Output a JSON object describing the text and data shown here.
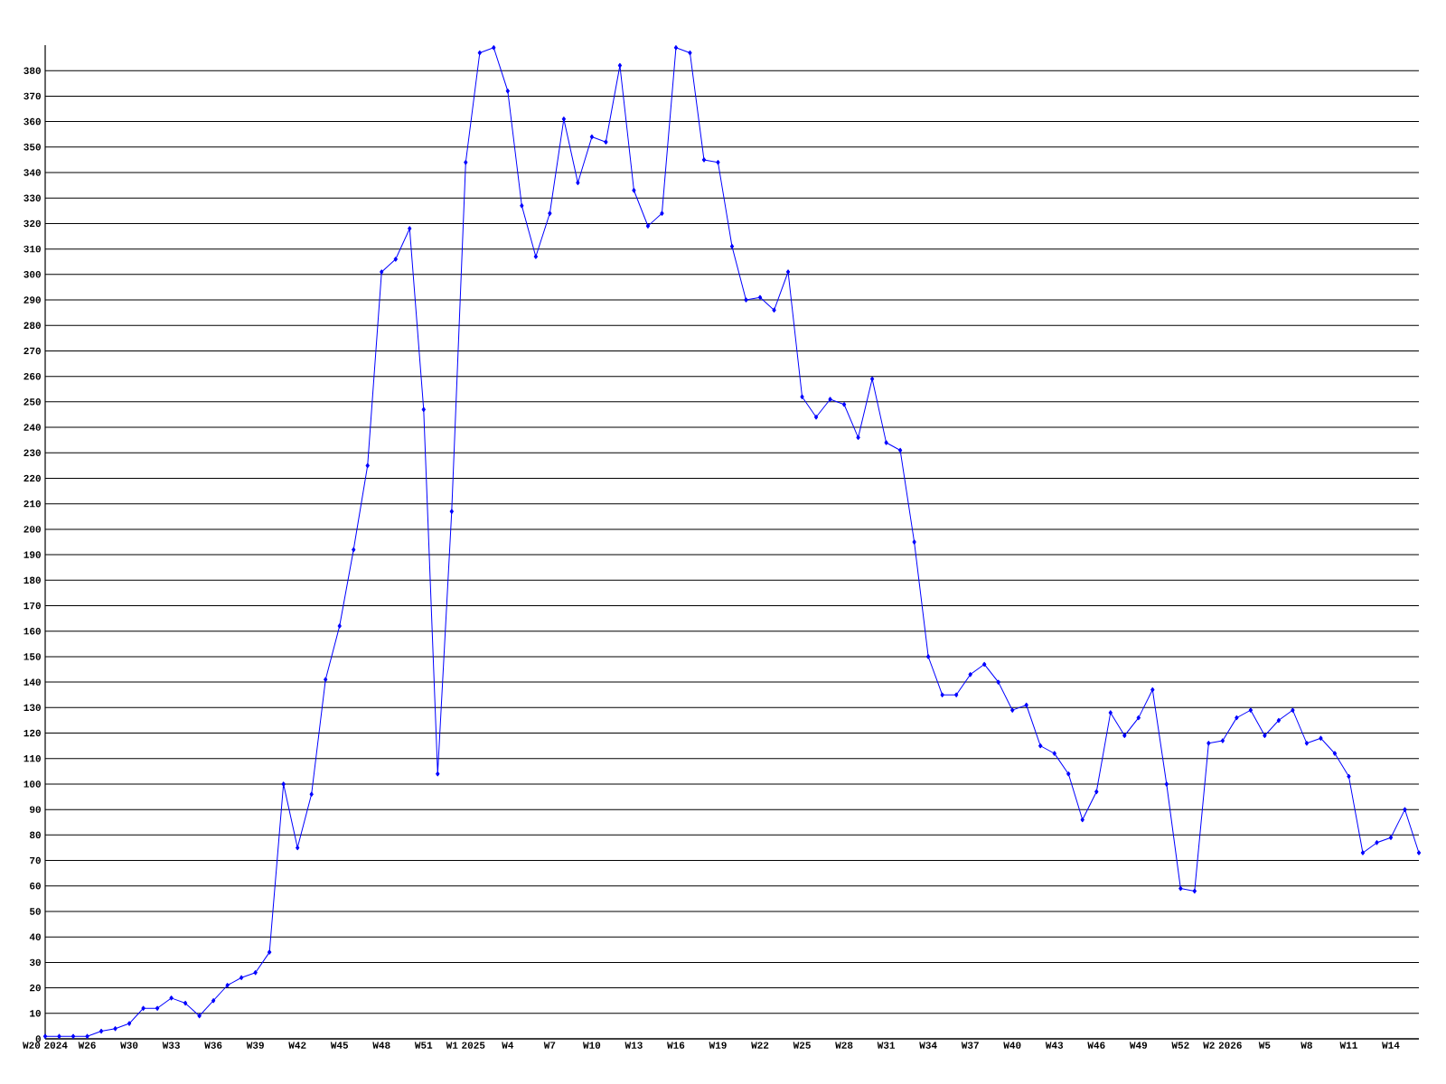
{
  "chart_data": {
    "type": "line",
    "categories": [
      "W20 2024",
      null,
      null,
      "W26",
      null,
      null,
      "W30",
      null,
      null,
      "W33",
      null,
      null,
      "W36",
      null,
      null,
      "W39",
      null,
      null,
      "W42",
      null,
      null,
      "W45",
      null,
      null,
      "W48",
      null,
      null,
      "W51",
      null,
      null,
      "W1 2025",
      null,
      null,
      "W4",
      null,
      null,
      "W7",
      null,
      null,
      "W10",
      null,
      null,
      "W13",
      null,
      null,
      "W16",
      null,
      null,
      "W19",
      null,
      null,
      "W22",
      null,
      null,
      "W25",
      null,
      null,
      "W28",
      null,
      null,
      "W31",
      null,
      null,
      "W34",
      null,
      null,
      "W37",
      null,
      null,
      "W40",
      null,
      null,
      "W43",
      null,
      null,
      "W46",
      null,
      null,
      "W49",
      null,
      null,
      "W52",
      null,
      null,
      "W2 2026",
      null,
      null,
      "W5",
      null,
      null,
      "W8",
      null,
      null,
      "W11",
      null,
      null,
      "W14",
      null,
      null
    ],
    "values": [
      1,
      1,
      1,
      1,
      3,
      4,
      6,
      12,
      12,
      16,
      14,
      9,
      15,
      21,
      24,
      26,
      34,
      100,
      75,
      96,
      141,
      162,
      192,
      225,
      301,
      306,
      318,
      247,
      104,
      207,
      344,
      387,
      389,
      372,
      327,
      307,
      324,
      361,
      336,
      354,
      352,
      382,
      333,
      319,
      324,
      389,
      387,
      345,
      344,
      311,
      290,
      291,
      286,
      301,
      252,
      244,
      251,
      249,
      236,
      259,
      234,
      231,
      195,
      150,
      135,
      135,
      143,
      147,
      140,
      129,
      131,
      115,
      112,
      104,
      86,
      97,
      128,
      119,
      126,
      137,
      100,
      59,
      58,
      116,
      117,
      126,
      129,
      119,
      125,
      129,
      116,
      118,
      112,
      103,
      73,
      77,
      79,
      90,
      73
    ],
    "color": "#0000ff",
    "ylim": [
      0,
      390
    ],
    "yticks": [
      0,
      10,
      20,
      30,
      40,
      50,
      60,
      70,
      80,
      90,
      100,
      110,
      120,
      130,
      140,
      150,
      160,
      170,
      180,
      190,
      200,
      210,
      220,
      230,
      240,
      250,
      260,
      270,
      280,
      290,
      300,
      310,
      320,
      330,
      340,
      350,
      360,
      370,
      380
    ],
    "grid": "y",
    "marker": "diamond"
  }
}
